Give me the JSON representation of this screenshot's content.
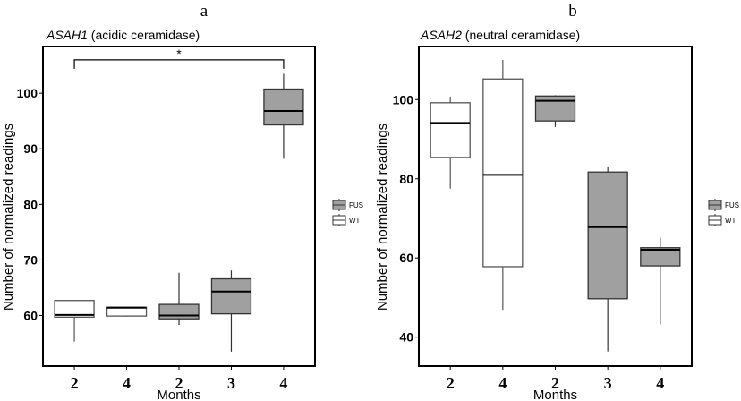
{
  "chart_data": [
    {
      "type": "box",
      "panel_label": "a",
      "title_gene": "ASAH1",
      "title_rest": " (acidic ceramidase)",
      "xlabel": "Months",
      "ylabel": "Number of normalized readings",
      "ylim": [
        50.9,
        108.4
      ],
      "yticks": [
        60,
        70,
        80,
        90,
        100
      ],
      "grid": false,
      "legend": {
        "placement": "right",
        "entries": [
          {
            "name": "FUS",
            "color": "#a0a0a0"
          },
          {
            "name": "WT",
            "color": "#ffffff"
          }
        ]
      },
      "categories": [
        "2",
        "4",
        "2",
        "3",
        "4"
      ],
      "boxes": [
        {
          "group": "WT",
          "month": "2",
          "min": 55.3,
          "q1": 59.7,
          "median": 60.1,
          "q3": 62.7,
          "max": 62.8
        },
        {
          "group": "WT",
          "month": "4",
          "min": 59.8,
          "q1": 59.9,
          "median": 61.4,
          "q3": 61.5,
          "max": 61.5
        },
        {
          "group": "FUS",
          "month": "2",
          "min": 58.3,
          "q1": 59.4,
          "median": 60.0,
          "q3": 62.0,
          "max": 67.7
        },
        {
          "group": "FUS",
          "month": "3",
          "min": 53.5,
          "q1": 60.3,
          "median": 64.3,
          "q3": 66.6,
          "max": 68.1
        },
        {
          "group": "FUS",
          "month": "4",
          "min": 88.2,
          "q1": 94.3,
          "median": 96.8,
          "q3": 100.75,
          "max": 103.5
        }
      ],
      "annotations": [
        {
          "type": "significance",
          "from": 0,
          "to": 4,
          "y": 106,
          "label": "*"
        }
      ]
    },
    {
      "type": "box",
      "panel_label": "b",
      "title_gene": "ASAH2",
      "title_rest": " (neutral ceramidase)",
      "xlabel": "Months",
      "ylabel": "Number of normalized readings",
      "ylim": [
        32.7,
        113.4
      ],
      "yticks": [
        40,
        60,
        80,
        100
      ],
      "grid": false,
      "legend": {
        "placement": "right",
        "entries": [
          {
            "name": "FUS",
            "color": "#a0a0a0"
          },
          {
            "name": "WT",
            "color": "#ffffff"
          }
        ]
      },
      "categories": [
        "2",
        "4",
        "2",
        "3",
        "4"
      ],
      "boxes": [
        {
          "group": "WT",
          "month": "2",
          "min": 77.5,
          "q1": 85.4,
          "median": 94.1,
          "q3": 99.2,
          "max": 100.75
        },
        {
          "group": "WT",
          "month": "4",
          "min": 46.9,
          "q1": 57.8,
          "median": 81.0,
          "q3": 105.2,
          "max": 110.0
        },
        {
          "group": "FUS",
          "month": "2",
          "min": 93.1,
          "q1": 94.6,
          "median": 99.7,
          "q3": 100.9,
          "max": 101.1
        },
        {
          "group": "FUS",
          "month": "3",
          "min": 36.4,
          "q1": 49.7,
          "median": 67.8,
          "q3": 81.7,
          "max": 82.9
        },
        {
          "group": "FUS",
          "month": "4",
          "min": 43.2,
          "q1": 58.0,
          "median": 62.1,
          "q3": 62.6,
          "max": 65.1
        }
      ],
      "annotations": []
    }
  ]
}
